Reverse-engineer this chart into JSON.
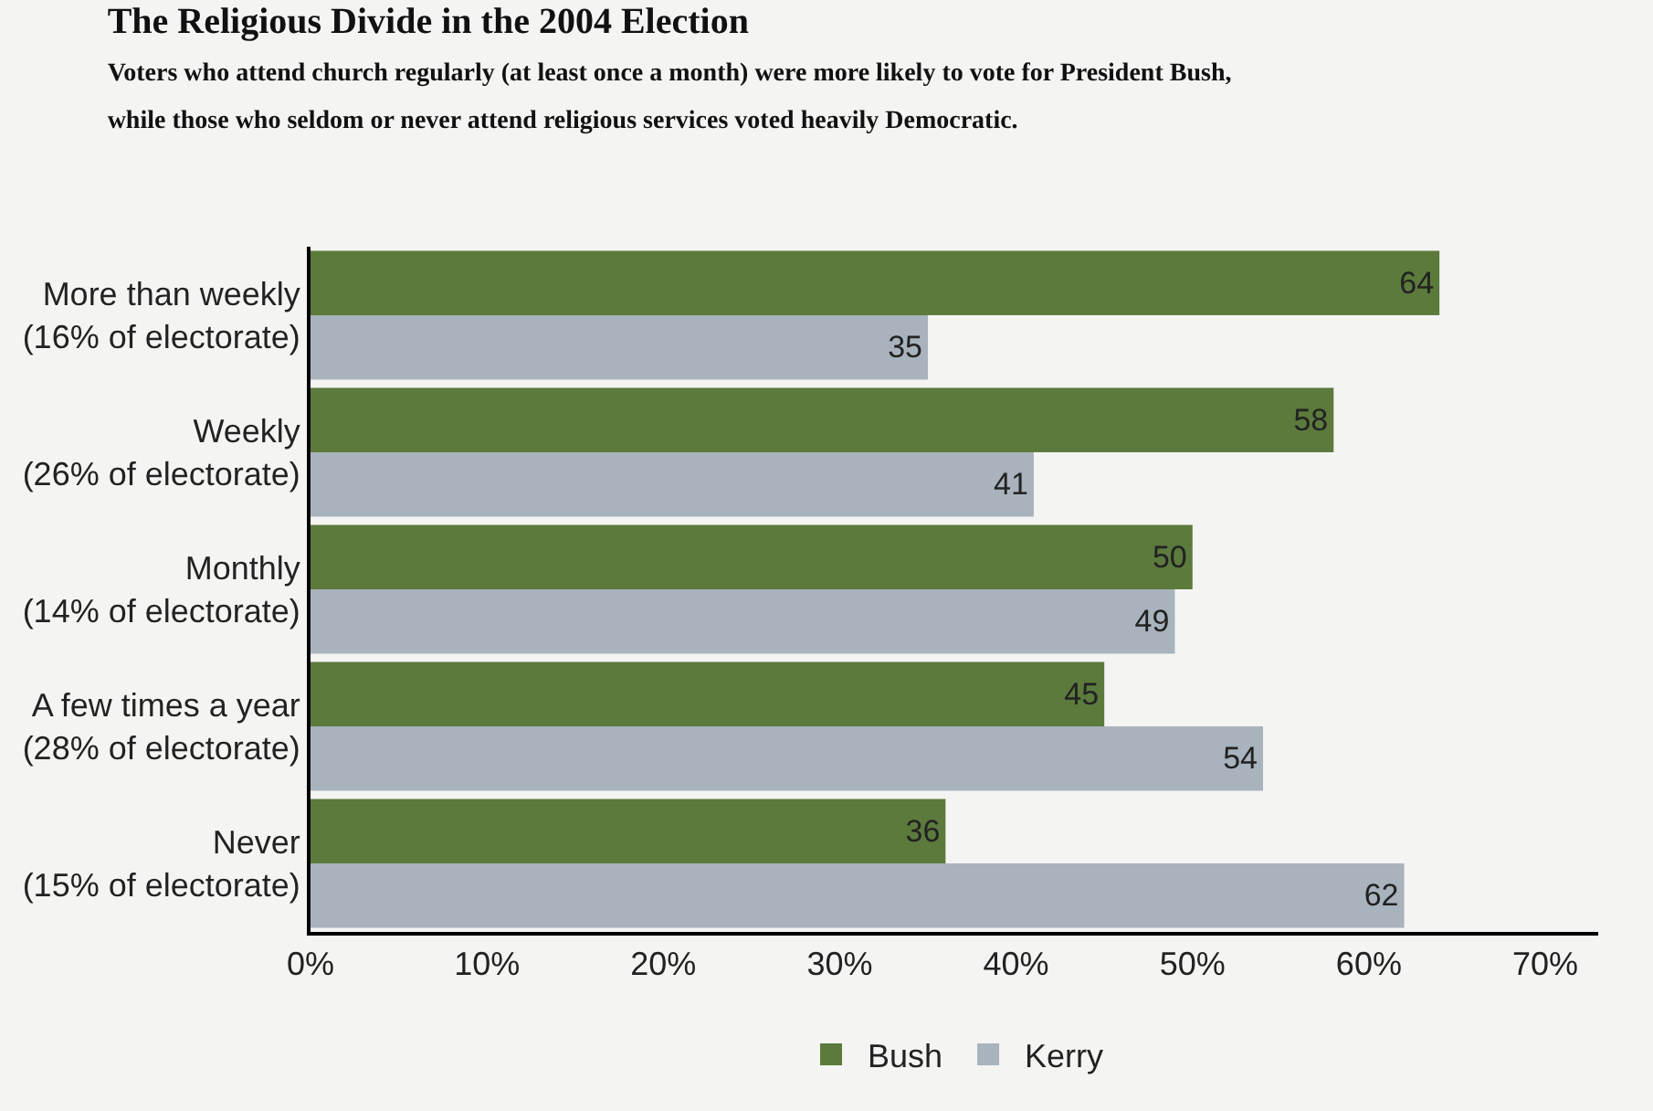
{
  "chart_data": {
    "type": "bar",
    "orientation": "horizontal",
    "title": "The Religious Divide in the 2004 Election",
    "subtitle": "Voters who attend church regularly (at least once a month) were more likely to vote for President Bush,\nwhile those who seldom or never attend religious services voted heavily Democratic.",
    "categories": [
      "More than weekly\n(16% of electorate)",
      "Weekly\n(26% of electorate)",
      "Monthly\n(14% of electorate)",
      "A few times a year\n(28% of electorate)",
      "Never\n(15% of electorate)"
    ],
    "series": [
      {
        "name": "Bush",
        "color": "#5b7a3c",
        "values": [
          64,
          58,
          50,
          45,
          36
        ]
      },
      {
        "name": "Kerry",
        "color": "#a8b3bd",
        "values": [
          35,
          41,
          49,
          54,
          62
        ]
      }
    ],
    "xlim": [
      0,
      73
    ],
    "xticks": [
      {
        "value": 0,
        "label": "0%"
      },
      {
        "value": 10,
        "label": "10%"
      },
      {
        "value": 20,
        "label": "20%"
      },
      {
        "value": 30,
        "label": "30%"
      },
      {
        "value": 40,
        "label": "40%"
      },
      {
        "value": 50,
        "label": "50%"
      },
      {
        "value": 60,
        "label": "60%"
      },
      {
        "value": 70,
        "label": "70%"
      }
    ],
    "data_labels": true,
    "grid": false,
    "legend": "bottom"
  }
}
